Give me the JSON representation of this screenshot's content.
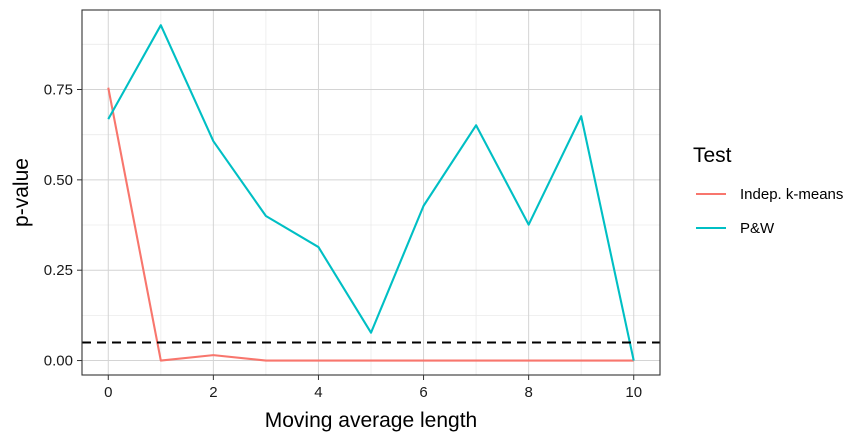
{
  "chart_data": {
    "type": "line",
    "xlabel": "Moving average length",
    "ylabel": "p-value",
    "xlim": [
      -0.5,
      10.5
    ],
    "ylim": [
      -0.04,
      0.97
    ],
    "x_ticks": [
      0,
      2,
      4,
      6,
      8,
      10
    ],
    "y_ticks": [
      0.0,
      0.25,
      0.5,
      0.75
    ],
    "y_tick_labels": [
      "0.00",
      "0.25",
      "0.50",
      "0.75"
    ],
    "grid": true,
    "legend": {
      "title": "Test",
      "placement": "right"
    },
    "reference_line": {
      "y": 0.05,
      "style": "dashed",
      "color": "#000000"
    },
    "x": [
      0,
      1,
      2,
      3,
      4,
      5,
      6,
      7,
      8,
      9,
      10
    ],
    "series": [
      {
        "name": "Indep. k-means",
        "color": "#F8766D",
        "values": [
          0.755,
          0.0,
          0.015,
          0.0,
          0.0,
          0.0,
          0.0,
          0.0,
          0.0,
          0.0,
          0.0
        ]
      },
      {
        "name": "P&W",
        "color": "#00BFC4",
        "values": [
          0.668,
          0.928,
          0.607,
          0.4,
          0.314,
          0.077,
          0.428,
          0.651,
          0.376,
          0.676,
          0.0
        ]
      }
    ]
  }
}
